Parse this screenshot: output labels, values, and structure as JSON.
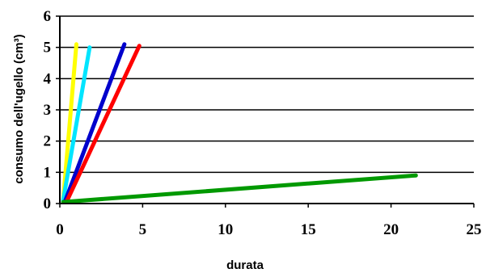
{
  "chart_data": {
    "type": "line",
    "title": "",
    "xlabel": "durata",
    "ylabel": "consumo dell'ugello (cm³)",
    "xlim": [
      0,
      25
    ],
    "ylim": [
      0,
      6
    ],
    "xticks": [
      "0",
      "5",
      "10",
      "15",
      "20",
      "25"
    ],
    "yticks": [
      "0",
      "1",
      "2",
      "3",
      "4",
      "5",
      "6"
    ],
    "grid": "horizontal",
    "legend": "none",
    "series": [
      {
        "color": "#ffff00",
        "points": [
          [
            0.2,
            0.1
          ],
          [
            1.0,
            5.1
          ]
        ]
      },
      {
        "color": "#00e5ff",
        "points": [
          [
            0.2,
            0.1
          ],
          [
            1.8,
            5.0
          ]
        ]
      },
      {
        "color": "#0000cc",
        "points": [
          [
            0.3,
            0.05
          ],
          [
            3.9,
            5.1
          ]
        ]
      },
      {
        "color": "#ff0000",
        "points": [
          [
            0.4,
            0.05
          ],
          [
            4.8,
            5.05
          ]
        ]
      },
      {
        "color": "#009900",
        "points": [
          [
            0.2,
            0.05
          ],
          [
            21.5,
            0.9
          ]
        ]
      }
    ]
  }
}
